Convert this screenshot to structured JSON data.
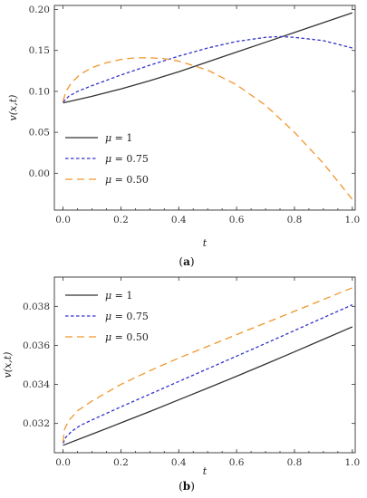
{
  "chart_data": [
    {
      "type": "line",
      "panel_label": "a",
      "xlabel": "t",
      "ylabel": "v(x,t)",
      "xlim": [
        -0.03,
        1.01
      ],
      "ylim": [
        -0.045,
        0.205
      ],
      "xticks": [
        "0.0",
        "0.2",
        "0.4",
        "0.6",
        "0.8",
        "1.0"
      ],
      "yticks": [
        "0.00",
        "0.05",
        "0.10",
        "0.15",
        "0.20"
      ],
      "xtick_values": [
        0,
        0.2,
        0.4,
        0.6,
        0.8,
        1.0
      ],
      "ytick_values": [
        0,
        0.05,
        0.1,
        0.15,
        0.2
      ],
      "legend_position": "bottom-left",
      "grid": false,
      "series": [
        {
          "name": "μ = 1",
          "symbol": "μ",
          "rest": " = 1",
          "color": "#333333",
          "dash": "solid",
          "x": [
            0,
            0.1,
            0.2,
            0.3,
            0.4,
            0.5,
            0.6,
            0.7,
            0.8,
            0.9,
            1.0
          ],
          "y": [
            0.086,
            0.094,
            0.103,
            0.113,
            0.124,
            0.136,
            0.148,
            0.16,
            0.172,
            0.184,
            0.196
          ]
        },
        {
          "name": "μ = 0.75",
          "symbol": "μ",
          "rest": " = 0.75",
          "color": "#3333cc",
          "dash": "short",
          "x": [
            0,
            0.02,
            0.05,
            0.1,
            0.2,
            0.3,
            0.4,
            0.5,
            0.6,
            0.7,
            0.75,
            0.8,
            0.9,
            1.0
          ],
          "y": [
            0.087,
            0.094,
            0.1,
            0.107,
            0.12,
            0.132,
            0.143,
            0.153,
            0.161,
            0.166,
            0.167,
            0.166,
            0.162,
            0.153
          ]
        },
        {
          "name": "μ = 0.50",
          "symbol": "μ",
          "rest": " = 0.50",
          "color": "#f0962d",
          "dash": "long",
          "x": [
            0,
            0.01,
            0.03,
            0.06,
            0.1,
            0.15,
            0.2,
            0.25,
            0.3,
            0.35,
            0.4,
            0.5,
            0.6,
            0.7,
            0.8,
            0.9,
            1.0
          ],
          "y": [
            0.088,
            0.1,
            0.111,
            0.121,
            0.129,
            0.135,
            0.139,
            0.141,
            0.141,
            0.14,
            0.137,
            0.126,
            0.108,
            0.083,
            0.05,
            0.012,
            -0.032
          ]
        }
      ]
    },
    {
      "type": "line",
      "panel_label": "b",
      "xlabel": "t",
      "ylabel": "v(x,t)",
      "xlim": [
        -0.03,
        1.01
      ],
      "ylim": [
        0.0305,
        0.0395
      ],
      "xticks": [
        "0.0",
        "0.2",
        "0.4",
        "0.6",
        "0.8",
        "1.0"
      ],
      "yticks": [
        "0.032",
        "0.034",
        "0.036",
        "0.038"
      ],
      "xtick_values": [
        0,
        0.2,
        0.4,
        0.6,
        0.8,
        1.0
      ],
      "ytick_values": [
        0.032,
        0.034,
        0.036,
        0.038
      ],
      "legend_position": "top-left",
      "grid": false,
      "series": [
        {
          "name": "μ = 1",
          "symbol": "μ",
          "rest": " = 1",
          "color": "#333333",
          "dash": "solid",
          "x": [
            0,
            0.1,
            0.2,
            0.3,
            0.4,
            0.5,
            0.6,
            0.7,
            0.8,
            0.9,
            1.0
          ],
          "y": [
            0.03088,
            0.03145,
            0.03203,
            0.03261,
            0.03321,
            0.03381,
            0.03442,
            0.03504,
            0.03567,
            0.03631,
            0.03695
          ]
        },
        {
          "name": "μ = 0.75",
          "symbol": "μ",
          "rest": " = 0.75",
          "color": "#3333cc",
          "dash": "short",
          "x": [
            0,
            0.01,
            0.03,
            0.06,
            0.1,
            0.2,
            0.3,
            0.4,
            0.5,
            0.6,
            0.7,
            0.8,
            0.9,
            1.0
          ],
          "y": [
            0.03098,
            0.0313,
            0.0316,
            0.0319,
            0.03218,
            0.03285,
            0.0335,
            0.03415,
            0.0348,
            0.03545,
            0.0361,
            0.03676,
            0.03742,
            0.03808
          ]
        },
        {
          "name": "μ = 0.50",
          "symbol": "μ",
          "rest": " = 0.50",
          "color": "#f0962d",
          "dash": "long",
          "x": [
            0,
            0.005,
            0.02,
            0.05,
            0.1,
            0.2,
            0.3,
            0.4,
            0.5,
            0.6,
            0.7,
            0.8,
            0.9,
            1.0
          ],
          "y": [
            0.03105,
            0.0317,
            0.03215,
            0.03265,
            0.03315,
            0.034,
            0.0347,
            0.03535,
            0.03595,
            0.03655,
            0.03715,
            0.03775,
            0.03835,
            0.03895
          ]
        }
      ]
    }
  ]
}
